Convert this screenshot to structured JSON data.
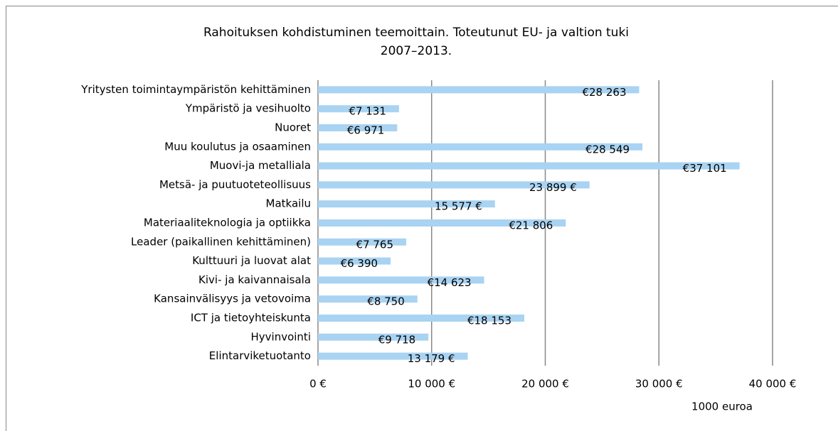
{
  "chart_data": {
    "type": "barh",
    "title": [
      "Rahoituksen kohdistuminen teemoittain. Toteutunut EU- ja valtion tuki",
      "2007–2013."
    ],
    "x_label": "1000 euroa",
    "categories": [
      "Yritysten toimintaympäristön kehittäminen",
      "Ympäristö ja vesihuolto",
      "Nuoret",
      "Muu koulutus ja osaaminen",
      "Muovi-ja metalliala",
      "Metsä- ja puutuoteteollisuus",
      "Matkailu",
      "Materiaaliteknologia ja optiikka",
      "Leader (paikallinen kehittäminen)",
      "Kulttuuri ja luovat alat",
      "Kivi- ja kaivannaisala",
      "Kansainvälisyys ja vetovoima",
      "ICT ja tietoyhteiskunta",
      "Hyvinvointi",
      "Elintarviketuotanto"
    ],
    "values": [
      28263,
      7131,
      6971,
      28549,
      37101,
      23899,
      15577,
      21806,
      7765,
      6390,
      14623,
      8750,
      18153,
      9718,
      13179
    ],
    "value_labels": [
      "€28 263",
      "€7 131",
      "€6 971",
      "€28 549",
      "€37 101",
      "23 899 €",
      "15 577 €",
      "€21 806",
      "€7 765",
      "€6 390",
      "€14 623",
      "€8 750",
      "€18 153",
      "€9 718",
      "13 179 €"
    ],
    "color": "#a9d3f2",
    "xlim": [
      0,
      40000
    ],
    "xticks": [
      {
        "value": 0,
        "label": "0 €"
      },
      {
        "value": 10000,
        "label": "10 000 €"
      },
      {
        "value": 20000,
        "label": "20 000 €"
      },
      {
        "value": 30000,
        "label": "30 000 €"
      },
      {
        "value": 40000,
        "label": "40 000 €"
      }
    ],
    "grid": true
  }
}
